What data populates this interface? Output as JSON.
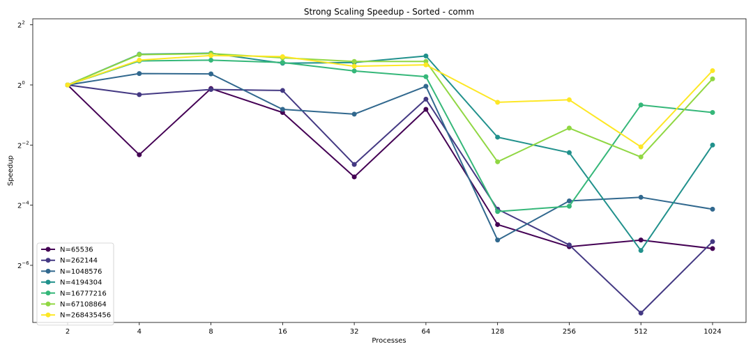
{
  "chart_data": {
    "type": "line",
    "title": "Strong Scaling Speedup - Sorted - comm",
    "xlabel": "Processes",
    "ylabel": "Speedup",
    "yscale": "log2",
    "ylim_log2": [
      -7.9,
      2.2
    ],
    "categories": [
      "2",
      "4",
      "8",
      "16",
      "32",
      "64",
      "128",
      "256",
      "512",
      "1024"
    ],
    "y_ticks": [
      {
        "exp": 2,
        "base": "2",
        "sup": "2"
      },
      {
        "exp": 0,
        "base": "2",
        "sup": "0"
      },
      {
        "exp": -2,
        "base": "2",
        "sup": "−2"
      },
      {
        "exp": -4,
        "base": "2",
        "sup": "−4"
      },
      {
        "exp": -6,
        "base": "2",
        "sup": "−6"
      }
    ],
    "grid": false,
    "legend_position": "lower left",
    "series": [
      {
        "name": "N=65536",
        "color": "#440154",
        "values": [
          1.0,
          0.2,
          0.92,
          0.53,
          0.12,
          0.57,
          0.04,
          0.024,
          0.028,
          0.023
        ]
      },
      {
        "name": "N=262144",
        "color": "#443983",
        "values": [
          1.0,
          0.8,
          0.9,
          0.88,
          0.16,
          0.72,
          0.057,
          0.025,
          0.0052,
          0.027
        ]
      },
      {
        "name": "N=1048576",
        "color": "#31688e",
        "values": [
          1.0,
          1.3,
          1.29,
          0.57,
          0.51,
          0.97,
          0.028,
          0.069,
          0.075,
          0.057
        ]
      },
      {
        "name": "N=4194304",
        "color": "#21918c",
        "values": [
          1.0,
          2.03,
          2.08,
          1.65,
          1.68,
          1.95,
          0.3,
          0.21,
          0.022,
          0.25
        ]
      },
      {
        "name": "N=16777216",
        "color": "#35b779",
        "values": [
          1.0,
          1.74,
          1.77,
          1.68,
          1.38,
          1.21,
          0.054,
          0.061,
          0.63,
          0.53
        ]
      },
      {
        "name": "N=67108864",
        "color": "#90d743",
        "values": [
          1.0,
          2.01,
          2.06,
          1.87,
          1.72,
          1.72,
          0.17,
          0.37,
          0.19,
          1.15
        ]
      },
      {
        "name": "N=268435456",
        "color": "#fde725",
        "values": [
          1.0,
          1.77,
          1.97,
          1.92,
          1.54,
          1.59,
          0.67,
          0.71,
          0.24,
          1.39
        ]
      }
    ]
  }
}
